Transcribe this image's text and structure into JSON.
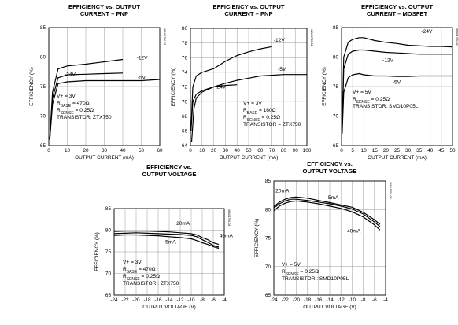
{
  "chart_data": [
    {
      "type": "line",
      "title": "EFFICIENCY vs. OUTPUT CURRENT – PNP",
      "title_lines": [
        "EFFICIENCY vs. OUTPUT",
        "CURRENT – PNP"
      ],
      "xlabel": "OUTPUT CURRENT (mA)",
      "ylabel": "EFFICIENCY (%)",
      "xlim": [
        0,
        60
      ],
      "ylim": [
        65,
        85
      ],
      "xticks": [
        0,
        10,
        20,
        30,
        40,
        50,
        60
      ],
      "yticks": [
        65,
        70,
        75,
        80,
        85
      ],
      "grid": true,
      "annotation": [
        "V+ = 3V",
        "R_BASE = 470Ω",
        "R_SENSE = 0.25Ω",
        "TRANSISTOR: ZTX750"
      ],
      "series": [
        {
          "name": "-12V",
          "x": [
            0.5,
            2,
            5,
            10,
            20,
            30,
            40
          ],
          "y": [
            66,
            74,
            78,
            78.5,
            78.8,
            79.2,
            79.6
          ]
        },
        {
          "name": "-24V",
          "x": [
            0.5,
            2,
            5,
            10,
            20,
            30,
            40
          ],
          "y": [
            66,
            73,
            76.5,
            77,
            77.1,
            77.2,
            77.3
          ]
        },
        {
          "name": "-5V",
          "x": [
            0.5,
            2,
            5,
            10,
            20,
            30,
            40,
            50,
            60
          ],
          "y": [
            66,
            72,
            75.5,
            75.8,
            76,
            76,
            76,
            76,
            76.2
          ]
        }
      ]
    },
    {
      "type": "line",
      "title": "EFFICIENCY vs. OUTPUT CURRENT – PNP",
      "title_lines": [
        "EFFICIENCY vs. OUTPUT",
        "CURRENT – PNP"
      ],
      "xlabel": "OUTPUT CURRENT (mA)",
      "ylabel": "EFFICIENCY (%)",
      "xlim": [
        0,
        100
      ],
      "ylim": [
        64,
        80
      ],
      "xticks": [
        0,
        10,
        20,
        30,
        40,
        50,
        60,
        70,
        80,
        90,
        100
      ],
      "yticks": [
        64,
        66,
        68,
        70,
        72,
        74,
        76,
        78,
        80
      ],
      "grid": true,
      "annotation": [
        "V+ = 3V",
        "R_BASE = 160Ω",
        "R_SENSE = 0.25Ω",
        "TRANSISTOR = ZTX750"
      ],
      "series": [
        {
          "name": "-12V",
          "x": [
            0.5,
            2,
            5,
            10,
            20,
            30,
            40,
            50,
            60,
            70
          ],
          "y": [
            66,
            72,
            73.5,
            74,
            74.5,
            75.5,
            76.3,
            76.8,
            77.2,
            77.5
          ]
        },
        {
          "name": "-24V",
          "x": [
            0.5,
            2,
            5,
            10,
            20,
            30,
            40
          ],
          "y": [
            66,
            70,
            71,
            71.5,
            72,
            72.2,
            72.3
          ]
        },
        {
          "name": "-5V",
          "x": [
            1,
            3,
            5,
            10,
            20,
            30,
            40,
            50,
            60,
            70,
            80,
            90,
            100
          ],
          "y": [
            64.5,
            69,
            70.5,
            71.3,
            72,
            72.5,
            72.9,
            73.2,
            73.5,
            73.6,
            73.7,
            73.7,
            73.7
          ]
        }
      ]
    },
    {
      "type": "line",
      "title": "EFFICIENCY vs. OUTPUT CURRENT – MOSFET",
      "title_lines": [
        "EFFICIENCY vs. OUTPUT",
        "CURRENT – MOSFET"
      ],
      "xlabel": "OUTPUT CURRENT (mA)",
      "ylabel": "EFFICIENCY (%)",
      "xlim": [
        0,
        50
      ],
      "ylim": [
        65,
        85
      ],
      "xticks": [
        0,
        5,
        10,
        15,
        20,
        25,
        30,
        35,
        40,
        45,
        50
      ],
      "yticks": [
        65,
        70,
        75,
        80,
        85
      ],
      "grid": true,
      "annotation": [
        "V+ = 5V",
        "R_SENSE = 0.25Ω",
        "TRANSISTOR: SMD10P05L"
      ],
      "series": [
        {
          "name": "-24V",
          "x": [
            0.3,
            1,
            3,
            5,
            8,
            10,
            15,
            20,
            25,
            30,
            35,
            40,
            45,
            50
          ],
          "y": [
            68,
            80,
            82.5,
            83,
            83.3,
            83.3,
            82.8,
            82.5,
            82.3,
            82,
            81.9,
            81.8,
            81.8,
            81.7
          ]
        },
        {
          "name": "-12V",
          "x": [
            0.3,
            1,
            3,
            5,
            8,
            10,
            15,
            20,
            25,
            30,
            35,
            40,
            45,
            50
          ],
          "y": [
            68,
            78,
            80.5,
            81,
            81.2,
            81.2,
            81,
            80.8,
            80.7,
            80.6,
            80.5,
            80.5,
            80.5,
            80.5
          ]
        },
        {
          "name": "-5V",
          "x": [
            0.3,
            1,
            3,
            5,
            8,
            10,
            15,
            20,
            25,
            30,
            35,
            40,
            45,
            50
          ],
          "y": [
            67,
            74,
            76.5,
            77,
            77.2,
            77,
            76.8,
            76.8,
            76.7,
            76.7,
            76.8,
            76.8,
            76.8,
            76.8
          ]
        }
      ]
    },
    {
      "type": "line",
      "title": "EFFICIENCY vs. OUTPUT VOLTAGE",
      "title_lines": [
        "EFFICIENCY vs.",
        "OUTPUT VOLTAGE"
      ],
      "xlabel": "OUTPUT VOLTAGE (V)",
      "ylabel": "EFFICIENCY (%)",
      "xlim": [
        -24,
        -4
      ],
      "ylim": [
        65,
        85
      ],
      "xticks": [
        -24,
        -22,
        -20,
        -18,
        -16,
        -14,
        -12,
        -10,
        -8,
        -6,
        -4
      ],
      "yticks": [
        65,
        70,
        75,
        80,
        85
      ],
      "grid": true,
      "annotation": [
        "V+ = 3V",
        "R_BASE = 470Ω",
        "R_SENSE = 0.25Ω",
        "TRANSISTOR : ZTX750"
      ],
      "series": [
        {
          "name": "20mA",
          "x": [
            -24,
            -22,
            -20,
            -18,
            -16,
            -14,
            -12,
            -10,
            -9,
            -8,
            -7,
            -6,
            -5
          ],
          "y": [
            79.7,
            79.8,
            79.8,
            79.8,
            79.7,
            79.6,
            79.4,
            79.2,
            78.9,
            78.3,
            77.8,
            77.1,
            76.7
          ]
        },
        {
          "name": "40mA",
          "x": [
            -24,
            -22,
            -20,
            -18,
            -16,
            -14,
            -12,
            -10,
            -9,
            -8,
            -7,
            -6,
            -5
          ],
          "y": [
            79.2,
            79.3,
            79.4,
            79.3,
            79.2,
            79.1,
            79.0,
            78.8,
            78.5,
            77.8,
            77.2,
            76.5,
            76.1
          ]
        },
        {
          "name": "5mA",
          "x": [
            -24,
            -22,
            -20,
            -18,
            -16,
            -14,
            -12,
            -10,
            -9,
            -8,
            -7,
            -6,
            -5
          ],
          "y": [
            78.8,
            78.9,
            78.9,
            78.8,
            78.7,
            78.5,
            78.3,
            78.0,
            77.6,
            77.1,
            76.7,
            76.2,
            75.8
          ]
        }
      ]
    },
    {
      "type": "line",
      "title": "EFFICIENCY vs. OUTPUT VOLTAGE",
      "title_lines": [
        "EFFICIENCY vs.",
        "OUTPUT VOLTAGE"
      ],
      "xlabel": "OUTPUT VOLTAGE (V)",
      "ylabel": "EFFICIENCY (%)",
      "xlim": [
        -24,
        -4
      ],
      "ylim": [
        65,
        85
      ],
      "xticks": [
        -24,
        -22,
        -20,
        -18,
        -16,
        -14,
        -12,
        -10,
        -8,
        -6,
        -4
      ],
      "yticks": [
        65,
        70,
        75,
        80,
        85
      ],
      "grid": true,
      "annotation": [
        "V+ = 5V",
        "R_SENSE = 0.25Ω",
        "TRANSISTOR : SMD10P05L"
      ],
      "series": [
        {
          "name": "20mA",
          "x": [
            -24,
            -23,
            -22,
            -21,
            -20,
            -18,
            -16,
            -14,
            -12,
            -10,
            -8,
            -6,
            -5
          ],
          "y": [
            80.3,
            81.0,
            81.5,
            81.8,
            81.8,
            81.6,
            81.3,
            81.0,
            80.6,
            80.1,
            79.2,
            77.8,
            77.0
          ]
        },
        {
          "name": "5mA",
          "x": [
            -24,
            -23,
            -22,
            -21,
            -20,
            -18,
            -16,
            -14,
            -12,
            -10,
            -8,
            -6,
            -5
          ],
          "y": [
            80.5,
            81.3,
            81.8,
            82.1,
            82.2,
            82.0,
            81.6,
            81.2,
            80.8,
            80.4,
            79.5,
            78.2,
            77.4
          ]
        },
        {
          "name": "40mA",
          "x": [
            -24,
            -23,
            -22,
            -21,
            -20,
            -18,
            -16,
            -14,
            -12,
            -10,
            -8,
            -6,
            -5
          ],
          "y": [
            79.8,
            80.6,
            81.1,
            81.4,
            81.5,
            81.3,
            81.0,
            80.6,
            80.2,
            79.6,
            78.7,
            77.3,
            76.4
          ]
        }
      ]
    }
  ]
}
